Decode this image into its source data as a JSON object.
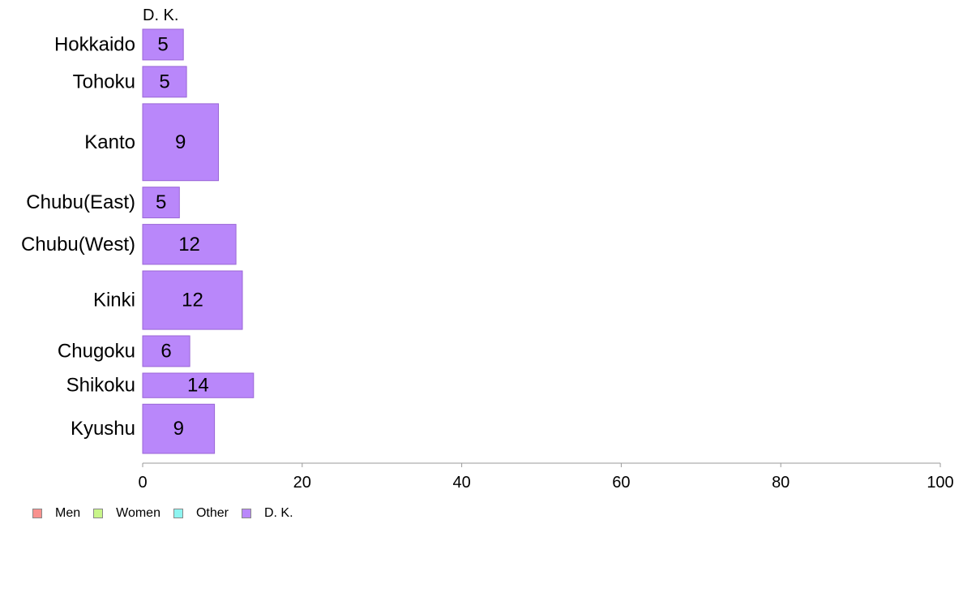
{
  "chart_data": {
    "type": "bar",
    "orientation": "horizontal",
    "panel_label": "D. K.",
    "categories": [
      "Hokkaido",
      "Tohoku",
      "Kanto",
      "Chubu(East)",
      "Chubu(West)",
      "Kinki",
      "Chugoku",
      "Shikoku",
      "Kyushu"
    ],
    "values": [
      5,
      5,
      9,
      5,
      12,
      12,
      6,
      14,
      9
    ],
    "bar_values": [
      5.1,
      5.5,
      9.5,
      4.6,
      11.7,
      12.5,
      5.9,
      13.9,
      9.0
    ],
    "bar_weights": [
      1,
      1,
      2.5,
      1,
      1.3,
      1.9,
      1,
      0.8,
      1.6
    ],
    "xlim": [
      0,
      100
    ],
    "xticks": [
      0,
      20,
      40,
      60,
      80,
      100
    ],
    "xlabel": "",
    "ylabel": "",
    "grid": false,
    "legend": [
      {
        "name": "Men",
        "color": "#f8918e"
      },
      {
        "name": "Women",
        "color": "#c8f58a"
      },
      {
        "name": "Other",
        "color": "#8ef4f0"
      },
      {
        "name": "D. K.",
        "color": "#b987fa"
      }
    ],
    "legend_position": "bottom-left",
    "bar_color": "#b987fa",
    "bar_edge_color": "#9a66d6"
  }
}
